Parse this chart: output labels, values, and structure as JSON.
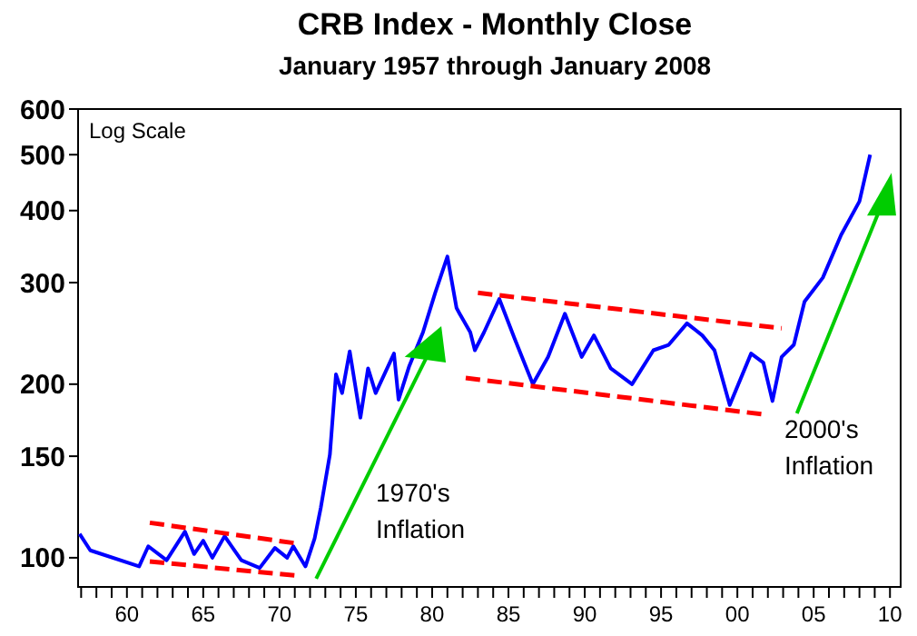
{
  "chart_data": {
    "type": "line",
    "title": "CRB Index - Monthly Close",
    "subtitle": "January 1957 through January 2008",
    "log": "y",
    "grid": false,
    "xlim": [
      1956.8,
      2010.7
    ],
    "ylim": [
      89,
      600
    ],
    "yticks": [
      100,
      150,
      200,
      300,
      400,
      500,
      600
    ],
    "xticks": [
      {
        "value": 1957,
        "label": null
      },
      {
        "value": 1958,
        "label": null
      },
      {
        "value": 1959,
        "label": null
      },
      {
        "value": 1960,
        "label": "60"
      },
      {
        "value": 1961,
        "label": null
      },
      {
        "value": 1962,
        "label": null
      },
      {
        "value": 1963,
        "label": null
      },
      {
        "value": 1964,
        "label": null
      },
      {
        "value": 1965,
        "label": "65"
      },
      {
        "value": 1966,
        "label": null
      },
      {
        "value": 1967,
        "label": null
      },
      {
        "value": 1968,
        "label": null
      },
      {
        "value": 1969,
        "label": null
      },
      {
        "value": 1970,
        "label": "70"
      },
      {
        "value": 1971,
        "label": null
      },
      {
        "value": 1972,
        "label": null
      },
      {
        "value": 1973,
        "label": null
      },
      {
        "value": 1974,
        "label": null
      },
      {
        "value": 1975,
        "label": "75"
      },
      {
        "value": 1976,
        "label": null
      },
      {
        "value": 1977,
        "label": null
      },
      {
        "value": 1978,
        "label": null
      },
      {
        "value": 1979,
        "label": null
      },
      {
        "value": 1980,
        "label": "80"
      },
      {
        "value": 1981,
        "label": null
      },
      {
        "value": 1982,
        "label": null
      },
      {
        "value": 1983,
        "label": null
      },
      {
        "value": 1984,
        "label": null
      },
      {
        "value": 1985,
        "label": "85"
      },
      {
        "value": 1986,
        "label": null
      },
      {
        "value": 1987,
        "label": null
      },
      {
        "value": 1988,
        "label": null
      },
      {
        "value": 1989,
        "label": null
      },
      {
        "value": 1990,
        "label": "90"
      },
      {
        "value": 1991,
        "label": null
      },
      {
        "value": 1992,
        "label": null
      },
      {
        "value": 1993,
        "label": null
      },
      {
        "value": 1994,
        "label": null
      },
      {
        "value": 1995,
        "label": "95"
      },
      {
        "value": 1996,
        "label": null
      },
      {
        "value": 1997,
        "label": null
      },
      {
        "value": 1998,
        "label": null
      },
      {
        "value": 1999,
        "label": null
      },
      {
        "value": 2000,
        "label": "00"
      },
      {
        "value": 2001,
        "label": null
      },
      {
        "value": 2002,
        "label": null
      },
      {
        "value": 2003,
        "label": null
      },
      {
        "value": 2004,
        "label": null
      },
      {
        "value": 2005,
        "label": "05"
      },
      {
        "value": 2006,
        "label": null
      },
      {
        "value": 2007,
        "label": null
      },
      {
        "value": 2008,
        "label": null
      },
      {
        "value": 2009,
        "label": null
      },
      {
        "value": 2010,
        "label": "10"
      }
    ],
    "series": [
      {
        "color": "#0000ff",
        "line_style": "solid",
        "x": [
          1956.9,
          1957.6,
          1960.8,
          1961.4,
          1962.6,
          1963.8,
          1964.4,
          1965,
          1965.6,
          1966.4,
          1967.5,
          1968.7,
          1969.7,
          1970.5,
          1970.9,
          1971.7,
          1972.3,
          1972.7,
          1973.3,
          1973.7,
          1974.1,
          1974.6,
          1975.3,
          1975.8,
          1976.3,
          1977.5,
          1977.8,
          1978.5,
          1979.4,
          1980.2,
          1981,
          1981.6,
          1981.8,
          1982.5,
          1982.8,
          1983.4,
          1984.4,
          1985.4,
          1986.6,
          1987.6,
          1988.7,
          1989.8,
          1990.6,
          1991.7,
          1993.1,
          1994.5,
          1995.5,
          1996.7,
          1997.7,
          1998.5,
          1999.5,
          2000.9,
          2001.7,
          2002.3,
          2002.9,
          2003.7,
          2004.4,
          2005.6,
          2006.8,
          2008,
          2008.7
        ],
        "values": [
          110,
          103,
          96.6,
          104.7,
          99,
          111,
          101.5,
          107,
          100,
          109,
          99,
          96,
          104,
          100,
          104.7,
          96.6,
          108,
          122,
          151,
          208,
          193,
          228,
          175,
          213,
          193,
          226,
          188,
          215,
          246,
          288,
          333,
          271,
          265,
          246,
          229,
          246,
          281,
          240,
          200,
          223,
          265,
          223,
          243,
          213,
          200,
          229,
          234,
          255,
          243,
          229,
          184,
          226,
          218,
          187,
          223,
          234,
          278,
          306,
          363,
          415,
          500
        ]
      },
      {
        "color": "#ff0000",
        "line_style": "dashed",
        "x": [
          1961.5,
          1971
        ],
        "values": [
          115,
          106
        ]
      },
      {
        "color": "#ff0000",
        "line_style": "dashed",
        "x": [
          1961.5,
          1971
        ],
        "values": [
          98.5,
          93.2
        ]
      },
      {
        "color": "#ff0000",
        "line_style": "dashed",
        "x": [
          1983,
          2002.9
        ],
        "values": [
          288,
          250
        ]
      },
      {
        "color": "#ff0000",
        "line_style": "dashed",
        "x": [
          1982.2,
          2001.9
        ],
        "values": [
          205,
          177
        ]
      }
    ],
    "annotations": [
      "Log Scale",
      "1970's Inflation",
      "2000's Inflation"
    ]
  }
}
